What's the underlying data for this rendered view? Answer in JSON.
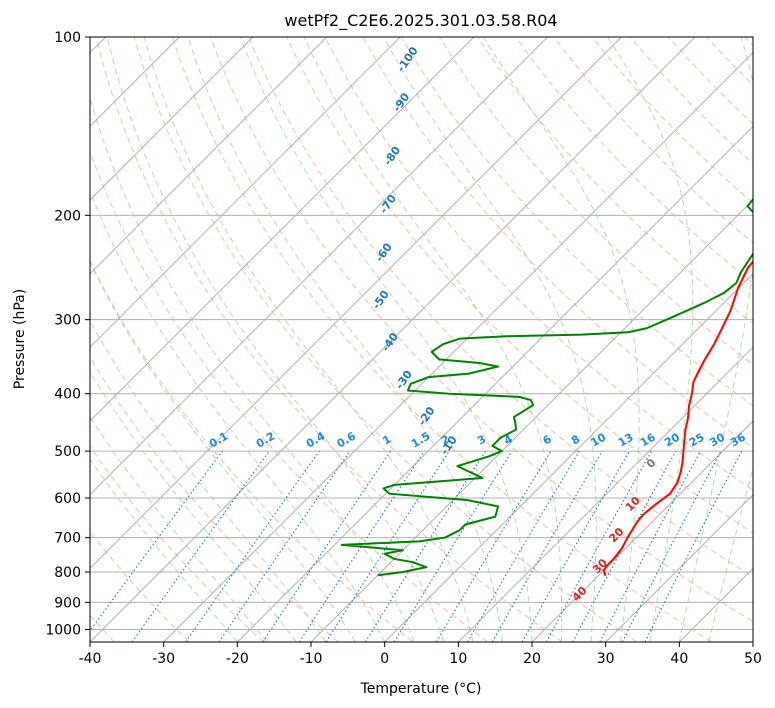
{
  "chart_data": {
    "type": "line",
    "subtype": "skew-T log-P diagram",
    "title": "wetPf2_C2E6.2025.301.03.58.R04",
    "xlabel": "Temperature (°C)",
    "ylabel": "Pressure (hPa)",
    "xlim": [
      -40,
      50
    ],
    "ylim": [
      1050,
      100
    ],
    "y_scale": "log",
    "grid": true,
    "x_ticks": [
      "-40",
      "-30",
      "-20",
      "-10",
      "0",
      "10",
      "20",
      "30",
      "40",
      "50"
    ],
    "y_ticks": [
      "100",
      "200",
      "300",
      "400",
      "500",
      "600",
      "700",
      "800",
      "900",
      "1000"
    ],
    "series": [
      {
        "role": "temperature",
        "color": "#ff0000",
        "points": [
          [
            21.0,
            812
          ],
          [
            20.0,
            795
          ],
          [
            19.8,
            780
          ],
          [
            19.8,
            760
          ],
          [
            19.5,
            730
          ],
          [
            18.8,
            700
          ],
          [
            18.6,
            690
          ],
          [
            18.0,
            660
          ],
          [
            17.8,
            640
          ],
          [
            18.1,
            615
          ],
          [
            18.6,
            590
          ],
          [
            18.1,
            565
          ],
          [
            17.0,
            540
          ],
          [
            15.9,
            520
          ],
          [
            14.0,
            490
          ],
          [
            12.0,
            460
          ],
          [
            10.8,
            440
          ],
          [
            9.3,
            420
          ],
          [
            8.0,
            400
          ],
          [
            6.6,
            382
          ],
          [
            5.8,
            365
          ],
          [
            5.1,
            350
          ],
          [
            4.3,
            330
          ],
          [
            3.2,
            310
          ],
          [
            2.0,
            290
          ],
          [
            -0.1,
            265
          ],
          [
            -1.5,
            245
          ],
          [
            -2.0,
            225
          ],
          [
            -2.0,
            210
          ],
          [
            -1.5,
            200
          ],
          [
            0.5,
            185
          ],
          [
            2.5,
            170
          ],
          [
            4.4,
            160
          ],
          [
            5.3,
            150
          ],
          [
            6.1,
            140
          ],
          [
            6.0,
            130
          ],
          [
            7.0,
            120
          ],
          [
            9.4,
            113
          ],
          [
            11.0,
            108
          ],
          [
            12.4,
            100
          ]
        ]
      },
      {
        "role": "dewpoint",
        "color": "#008000",
        "points": [
          [
            -10.0,
            810
          ],
          [
            -7.0,
            800
          ],
          [
            -4.5,
            785
          ],
          [
            -7.0,
            770
          ],
          [
            -10.0,
            760
          ],
          [
            -12.0,
            745
          ],
          [
            -10.0,
            735
          ],
          [
            -19.0,
            720
          ],
          [
            -9.0,
            710
          ],
          [
            -6.0,
            700
          ],
          [
            -5.0,
            680
          ],
          [
            -5.0,
            665
          ],
          [
            -2.0,
            645
          ],
          [
            -3.0,
            620
          ],
          [
            -8.0,
            605
          ],
          [
            -19.5,
            590
          ],
          [
            -21.0,
            578
          ],
          [
            -20.0,
            570
          ],
          [
            -9.0,
            555
          ],
          [
            -12.0,
            540
          ],
          [
            -14.0,
            530
          ],
          [
            -11.0,
            510
          ],
          [
            -10.0,
            500
          ],
          [
            -12.0,
            490
          ],
          [
            -12.0,
            475
          ],
          [
            -11.0,
            460
          ],
          [
            -12.0,
            448
          ],
          [
            -13.0,
            438
          ],
          [
            -12.0,
            418
          ],
          [
            -13.0,
            410
          ],
          [
            -15.0,
            405
          ],
          [
            -25.0,
            400
          ],
          [
            -31.0,
            395
          ],
          [
            -31.5,
            385
          ],
          [
            -30.0,
            375
          ],
          [
            -25.0,
            370
          ],
          [
            -22.0,
            360
          ],
          [
            -25.0,
            355
          ],
          [
            -31.0,
            350
          ],
          [
            -33.0,
            340
          ],
          [
            -32.5,
            330
          ],
          [
            -31.0,
            323
          ],
          [
            -25.0,
            320
          ],
          [
            -15.0,
            318
          ],
          [
            -9.0,
            315
          ],
          [
            -7.0,
            310
          ],
          [
            -5.5,
            300
          ],
          [
            -4.0,
            290
          ],
          [
            -2.5,
            280
          ],
          [
            -1.3,
            270
          ],
          [
            -1.0,
            260
          ],
          [
            -1.8,
            250
          ],
          [
            -2.3,
            240
          ],
          [
            -2.8,
            230
          ],
          [
            -2.8,
            220
          ],
          [
            -3.4,
            210
          ],
          [
            -7.5,
            200
          ],
          [
            -9.9,
            193
          ],
          [
            -10.2,
            185
          ],
          [
            -9.1,
            175
          ],
          [
            -8.6,
            165
          ],
          [
            -9.0,
            160
          ],
          [
            -8.6,
            155
          ],
          [
            -6.7,
            147
          ],
          [
            -4.8,
            140
          ],
          [
            -3.9,
            130
          ],
          [
            -3.6,
            120
          ],
          [
            -3.3,
            112
          ],
          [
            -2.0,
            105
          ],
          [
            0.0,
            100
          ]
        ]
      }
    ],
    "isotherm_spacing": 10,
    "dry_adiabats_potential_temperature_C": [
      -40,
      -30,
      -20,
      -10,
      0,
      10,
      20,
      30,
      40,
      50,
      60,
      70,
      80,
      90,
      100,
      110,
      120,
      130,
      140,
      150,
      160,
      170,
      180,
      190,
      200,
      210,
      220
    ],
    "moist_adiabats_start_C": [
      -20,
      -16,
      -12,
      -8,
      -4,
      0,
      4,
      8,
      12,
      16,
      20,
      24,
      28,
      32,
      36,
      40,
      44
    ],
    "mixing_ratio_lines_g_per_kg": [
      "0.1",
      "0.2",
      "0.4",
      "0.6",
      "1",
      "1.5",
      "2",
      "3",
      "4",
      "6",
      "8",
      "10",
      "13",
      "16",
      "20",
      "25",
      "30",
      "36"
    ],
    "wetbulb_labels_blue": [
      "-100",
      "-90",
      "-80",
      "-70",
      "-60",
      "-50",
      "-40",
      "-30",
      "-20",
      "-10"
    ],
    "wetbulb_labels_red": [
      "0",
      "10",
      "20",
      "30",
      "40"
    ]
  },
  "colors": {
    "temperature": "#ff0000",
    "dewpoint": "#008000",
    "isotherm": "#b0b0b0",
    "dry_adiabat": "#f4a582",
    "moist_adiabat": "#a6d4a6",
    "mixing_ratio": "#1f77b4",
    "mixing_label": "#1e88e5",
    "wetbulb_blue": "#1f77b4",
    "wetbulb_red": "#d62728",
    "wetbulb_zero": "#777777"
  }
}
